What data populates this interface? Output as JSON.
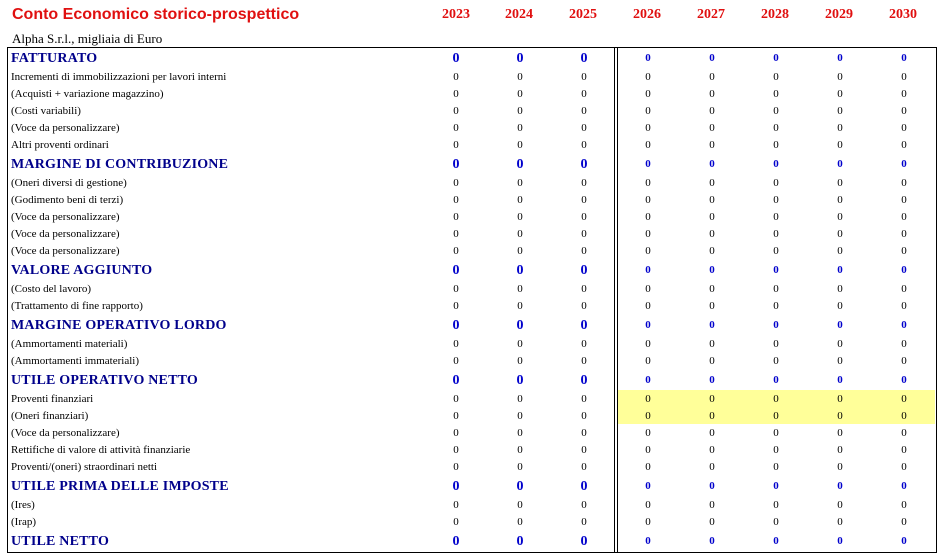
{
  "title": "Conto Economico storico-prospettico",
  "subtitle": "Alpha S.r.l., migliaia di Euro",
  "years": [
    "2023",
    "2024",
    "2025",
    "2026",
    "2027",
    "2028",
    "2029",
    "2030"
  ],
  "highlight_color": "#ffff99",
  "rows": [
    {
      "label": "FATTURATO",
      "type": "key",
      "values": [
        "0",
        "0",
        "0",
        "0",
        "0",
        "0",
        "0",
        "0"
      ]
    },
    {
      "label": "Incrementi di immobilizzazioni per lavori interni",
      "type": "item",
      "values": [
        "0",
        "0",
        "0",
        "0",
        "0",
        "0",
        "0",
        "0"
      ]
    },
    {
      "label": "(Acquisti + variazione magazzino)",
      "type": "item",
      "values": [
        "0",
        "0",
        "0",
        "0",
        "0",
        "0",
        "0",
        "0"
      ]
    },
    {
      "label": "(Costi variabili)",
      "type": "item",
      "values": [
        "0",
        "0",
        "0",
        "0",
        "0",
        "0",
        "0",
        "0"
      ]
    },
    {
      "label": "(Voce da personalizzare)",
      "type": "item",
      "values": [
        "0",
        "0",
        "0",
        "0",
        "0",
        "0",
        "0",
        "0"
      ]
    },
    {
      "label": "Altri proventi ordinari",
      "type": "item",
      "values": [
        "0",
        "0",
        "0",
        "0",
        "0",
        "0",
        "0",
        "0"
      ]
    },
    {
      "label": "MARGINE DI CONTRIBUZIONE",
      "type": "key",
      "values": [
        "0",
        "0",
        "0",
        "0",
        "0",
        "0",
        "0",
        "0"
      ]
    },
    {
      "label": "(Oneri diversi di gestione)",
      "type": "item",
      "values": [
        "0",
        "0",
        "0",
        "0",
        "0",
        "0",
        "0",
        "0"
      ]
    },
    {
      "label": "(Godimento beni di terzi)",
      "type": "item",
      "values": [
        "0",
        "0",
        "0",
        "0",
        "0",
        "0",
        "0",
        "0"
      ]
    },
    {
      "label": "(Voce da personalizzare)",
      "type": "item",
      "values": [
        "0",
        "0",
        "0",
        "0",
        "0",
        "0",
        "0",
        "0"
      ]
    },
    {
      "label": "(Voce da personalizzare)",
      "type": "item",
      "values": [
        "0",
        "0",
        "0",
        "0",
        "0",
        "0",
        "0",
        "0"
      ]
    },
    {
      "label": "(Voce da personalizzare)",
      "type": "item",
      "values": [
        "0",
        "0",
        "0",
        "0",
        "0",
        "0",
        "0",
        "0"
      ]
    },
    {
      "label": "VALORE AGGIUNTO",
      "type": "key",
      "values": [
        "0",
        "0",
        "0",
        "0",
        "0",
        "0",
        "0",
        "0"
      ]
    },
    {
      "label": "(Costo del lavoro)",
      "type": "item",
      "values": [
        "0",
        "0",
        "0",
        "0",
        "0",
        "0",
        "0",
        "0"
      ]
    },
    {
      "label": "(Trattamento di fine rapporto)",
      "type": "item",
      "values": [
        "0",
        "0",
        "0",
        "0",
        "0",
        "0",
        "0",
        "0"
      ]
    },
    {
      "label": "MARGINE OPERATIVO LORDO",
      "type": "key",
      "values": [
        "0",
        "0",
        "0",
        "0",
        "0",
        "0",
        "0",
        "0"
      ]
    },
    {
      "label": "(Ammortamenti materiali)",
      "type": "item",
      "values": [
        "0",
        "0",
        "0",
        "0",
        "0",
        "0",
        "0",
        "0"
      ]
    },
    {
      "label": "(Ammortamenti immateriali)",
      "type": "item",
      "values": [
        "0",
        "0",
        "0",
        "0",
        "0",
        "0",
        "0",
        "0"
      ]
    },
    {
      "label": "UTILE OPERATIVO NETTO",
      "type": "key",
      "values": [
        "0",
        "0",
        "0",
        "0",
        "0",
        "0",
        "0",
        "0"
      ]
    },
    {
      "label": "Proventi finanziari",
      "type": "item",
      "highlight": true,
      "values": [
        "0",
        "0",
        "0",
        "0",
        "0",
        "0",
        "0",
        "0"
      ]
    },
    {
      "label": "(Oneri finanziari)",
      "type": "item",
      "highlight": true,
      "values": [
        "0",
        "0",
        "0",
        "0",
        "0",
        "0",
        "0",
        "0"
      ]
    },
    {
      "label": "(Voce da personalizzare)",
      "type": "item",
      "values": [
        "0",
        "0",
        "0",
        "0",
        "0",
        "0",
        "0",
        "0"
      ]
    },
    {
      "label": "Rettifiche di valore di attività finanziarie",
      "type": "item",
      "values": [
        "0",
        "0",
        "0",
        "0",
        "0",
        "0",
        "0",
        "0"
      ]
    },
    {
      "label": "Proventi/(oneri) straordinari netti",
      "type": "item",
      "values": [
        "0",
        "0",
        "0",
        "0",
        "0",
        "0",
        "0",
        "0"
      ]
    },
    {
      "label": "UTILE PRIMA DELLE IMPOSTE",
      "type": "key",
      "values": [
        "0",
        "0",
        "0",
        "0",
        "0",
        "0",
        "0",
        "0"
      ]
    },
    {
      "label": "(Ires)",
      "type": "item",
      "values": [
        "0",
        "0",
        "0",
        "0",
        "0",
        "0",
        "0",
        "0"
      ]
    },
    {
      "label": "(Irap)",
      "type": "item",
      "values": [
        "0",
        "0",
        "0",
        "0",
        "0",
        "0",
        "0",
        "0"
      ]
    },
    {
      "label": "UTILE NETTO",
      "type": "key",
      "values": [
        "0",
        "0",
        "0",
        "0",
        "0",
        "0",
        "0",
        "0"
      ]
    }
  ]
}
